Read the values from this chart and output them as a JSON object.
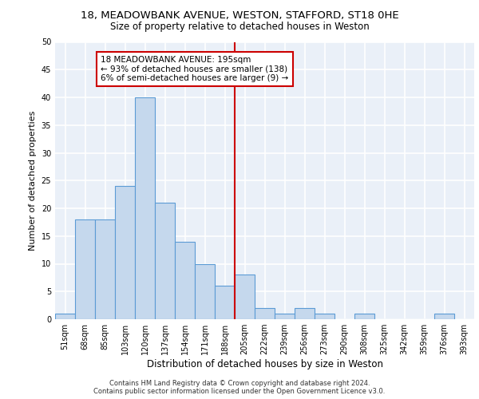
{
  "title1": "18, MEADOWBANK AVENUE, WESTON, STAFFORD, ST18 0HE",
  "title2": "Size of property relative to detached houses in Weston",
  "xlabel": "Distribution of detached houses by size in Weston",
  "ylabel": "Number of detached properties",
  "footer1": "Contains HM Land Registry data © Crown copyright and database right 2024.",
  "footer2": "Contains public sector information licensed under the Open Government Licence v3.0.",
  "bins": [
    "51sqm",
    "68sqm",
    "85sqm",
    "103sqm",
    "120sqm",
    "137sqm",
    "154sqm",
    "171sqm",
    "188sqm",
    "205sqm",
    "222sqm",
    "239sqm",
    "256sqm",
    "273sqm",
    "290sqm",
    "308sqm",
    "325sqm",
    "342sqm",
    "359sqm",
    "376sqm",
    "393sqm"
  ],
  "bar_values": [
    1,
    18,
    18,
    24,
    40,
    21,
    14,
    10,
    6,
    8,
    2,
    1,
    2,
    1,
    0,
    1,
    0,
    0,
    0,
    1,
    0
  ],
  "bar_color": "#c5d8ed",
  "bar_edge_color": "#5b9bd5",
  "vline_color": "#cc0000",
  "annotation_line1": "18 MEADOWBANK AVENUE: 195sqm",
  "annotation_line2": "← 93% of detached houses are smaller (138)",
  "annotation_line3": "6% of semi-detached houses are larger (9) →",
  "annotation_box_color": "#ffffff",
  "annotation_box_edge": "#cc0000",
  "ylim": [
    0,
    50
  ],
  "yticks": [
    0,
    5,
    10,
    15,
    20,
    25,
    30,
    35,
    40,
    45,
    50
  ],
  "bg_color": "#eaf0f8",
  "grid_color": "#ffffff",
  "title1_fontsize": 9.5,
  "title2_fontsize": 8.5,
  "xlabel_fontsize": 8.5,
  "ylabel_fontsize": 8,
  "tick_fontsize": 7,
  "footer_fontsize": 6,
  "annot_fontsize": 7.5
}
